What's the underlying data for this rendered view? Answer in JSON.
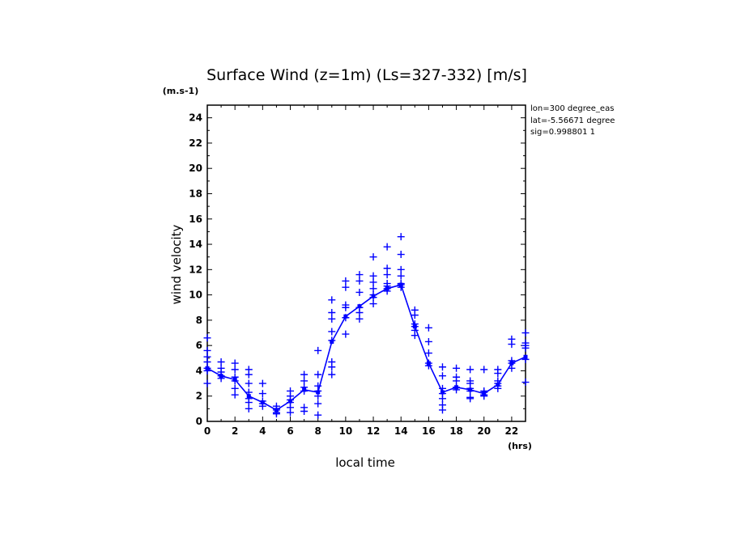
{
  "chart_data": {
    "type": "scatter",
    "title": "Surface Wind (z=1m) (Ls=327-332) [m/s]",
    "ylabel": "wind velocity",
    "xlabel": "local time",
    "y_unit": "(m.s-1)",
    "x_unit": "(hrs)",
    "xlim": [
      0,
      23
    ],
    "ylim": [
      0,
      25
    ],
    "x_ticks": [
      "0",
      "2",
      "4",
      "6",
      "8",
      "10",
      "12",
      "14",
      "16",
      "18",
      "20",
      "22"
    ],
    "y_ticks": [
      "0",
      "2",
      "4",
      "6",
      "8",
      "10",
      "12",
      "14",
      "16",
      "18",
      "20",
      "22",
      "24"
    ],
    "grid": false,
    "info_lines": [
      "lon=300 degree_eas",
      "lat=-5.56671 degree",
      "sig=0.998801 1"
    ],
    "colors": {
      "data": "#0000ff",
      "axes": "#000000"
    },
    "series": [
      {
        "type": "line",
        "x": [
          0,
          1,
          2,
          3,
          4,
          5,
          6,
          7,
          8,
          9,
          10,
          11,
          12,
          13,
          14,
          15,
          16,
          17,
          18,
          19,
          20,
          21,
          22,
          23
        ],
        "values": [
          4.2,
          3.6,
          3.3,
          2.0,
          1.5,
          0.9,
          1.6,
          2.5,
          2.3,
          6.3,
          8.3,
          9.1,
          9.9,
          10.5,
          10.8,
          7.5,
          4.6,
          2.3,
          2.7,
          2.5,
          2.2,
          2.9,
          4.6,
          5.1
        ]
      },
      {
        "type": "scatter",
        "points": [
          [
            0,
            6.6
          ],
          [
            0,
            5.6
          ],
          [
            0,
            5.1
          ],
          [
            0,
            4.7
          ],
          [
            0,
            4.2
          ],
          [
            0,
            4.0
          ],
          [
            0,
            3.0
          ],
          [
            1,
            4.7
          ],
          [
            1,
            4.2
          ],
          [
            1,
            3.9
          ],
          [
            1,
            3.6
          ],
          [
            1,
            3.4
          ],
          [
            2,
            4.6
          ],
          [
            2,
            4.1
          ],
          [
            2,
            3.5
          ],
          [
            2,
            3.2
          ],
          [
            2,
            2.6
          ],
          [
            2,
            2.1
          ],
          [
            3,
            4.1
          ],
          [
            3,
            3.7
          ],
          [
            3,
            3.0
          ],
          [
            3,
            2.3
          ],
          [
            3,
            1.8
          ],
          [
            3,
            1.5
          ],
          [
            3,
            1.0
          ],
          [
            4,
            3.0
          ],
          [
            4,
            2.2
          ],
          [
            4,
            1.6
          ],
          [
            4,
            1.4
          ],
          [
            4,
            1.2
          ],
          [
            5,
            1.2
          ],
          [
            5,
            1.0
          ],
          [
            5,
            0.9
          ],
          [
            5,
            0.7
          ],
          [
            5,
            0.6
          ],
          [
            6,
            2.4
          ],
          [
            6,
            2.0
          ],
          [
            6,
            1.7
          ],
          [
            6,
            1.5
          ],
          [
            6,
            1.1
          ],
          [
            6,
            0.7
          ],
          [
            7,
            3.7
          ],
          [
            7,
            3.2
          ],
          [
            7,
            2.7
          ],
          [
            7,
            2.4
          ],
          [
            7,
            1.1
          ],
          [
            7,
            0.8
          ],
          [
            8,
            5.6
          ],
          [
            8,
            3.7
          ],
          [
            8,
            2.8
          ],
          [
            8,
            2.4
          ],
          [
            8,
            2.0
          ],
          [
            8,
            1.4
          ],
          [
            8,
            0.5
          ],
          [
            9,
            9.6
          ],
          [
            9,
            8.6
          ],
          [
            9,
            8.1
          ],
          [
            9,
            7.1
          ],
          [
            9,
            6.4
          ],
          [
            9,
            4.7
          ],
          [
            9,
            4.3
          ],
          [
            9,
            3.7
          ],
          [
            10,
            11.1
          ],
          [
            10,
            10.6
          ],
          [
            10,
            9.2
          ],
          [
            10,
            9.0
          ],
          [
            10,
            8.2
          ],
          [
            10,
            6.9
          ],
          [
            11,
            11.6
          ],
          [
            11,
            11.1
          ],
          [
            11,
            10.2
          ],
          [
            11,
            9.0
          ],
          [
            11,
            8.6
          ],
          [
            11,
            8.1
          ],
          [
            12,
            13.0
          ],
          [
            12,
            11.5
          ],
          [
            12,
            11.0
          ],
          [
            12,
            10.5
          ],
          [
            12,
            10.0
          ],
          [
            12,
            9.8
          ],
          [
            12,
            9.3
          ],
          [
            13,
            13.8
          ],
          [
            13,
            12.1
          ],
          [
            13,
            11.6
          ],
          [
            13,
            10.9
          ],
          [
            13,
            10.7
          ],
          [
            13,
            10.5
          ],
          [
            13,
            10.3
          ],
          [
            14,
            14.6
          ],
          [
            14,
            13.2
          ],
          [
            14,
            12.0
          ],
          [
            14,
            11.5
          ],
          [
            14,
            10.9
          ],
          [
            14,
            10.8
          ],
          [
            14,
            10.6
          ],
          [
            15,
            8.8
          ],
          [
            15,
            8.4
          ],
          [
            15,
            7.7
          ],
          [
            15,
            7.5
          ],
          [
            15,
            7.2
          ],
          [
            15,
            6.8
          ],
          [
            16,
            7.4
          ],
          [
            16,
            6.3
          ],
          [
            16,
            5.4
          ],
          [
            16,
            4.6
          ],
          [
            16,
            4.4
          ],
          [
            17,
            4.3
          ],
          [
            17,
            3.6
          ],
          [
            17,
            2.6
          ],
          [
            17,
            2.2
          ],
          [
            17,
            1.8
          ],
          [
            17,
            1.3
          ],
          [
            17,
            0.9
          ],
          [
            18,
            4.2
          ],
          [
            18,
            3.5
          ],
          [
            18,
            3.2
          ],
          [
            18,
            2.7
          ],
          [
            18,
            2.5
          ],
          [
            19,
            4.1
          ],
          [
            19,
            3.2
          ],
          [
            19,
            3.0
          ],
          [
            19,
            2.6
          ],
          [
            19,
            2.4
          ],
          [
            19,
            1.9
          ],
          [
            19,
            1.8
          ],
          [
            20,
            4.1
          ],
          [
            20,
            2.4
          ],
          [
            20,
            2.3
          ],
          [
            20,
            2.1
          ],
          [
            20,
            2.0
          ],
          [
            21,
            4.1
          ],
          [
            21,
            3.8
          ],
          [
            21,
            3.2
          ],
          [
            21,
            3.0
          ],
          [
            21,
            2.8
          ],
          [
            21,
            2.6
          ],
          [
            22,
            6.5
          ],
          [
            22,
            6.1
          ],
          [
            22,
            4.8
          ],
          [
            22,
            4.6
          ],
          [
            22,
            4.2
          ],
          [
            23,
            7.0
          ],
          [
            23,
            6.2
          ],
          [
            23,
            6.0
          ],
          [
            23,
            5.8
          ],
          [
            23,
            4.9
          ],
          [
            23,
            3.1
          ]
        ]
      }
    ]
  }
}
